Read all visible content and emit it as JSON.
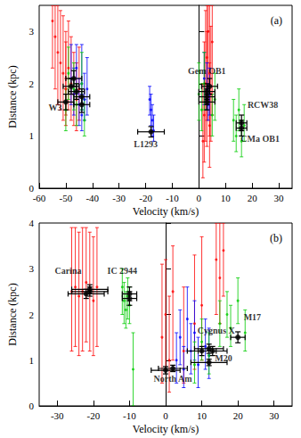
{
  "chart_data": [
    {
      "type": "scatter",
      "panel_label": "(a)",
      "xlabel": "Velocity (km/s)",
      "ylabel": "Distance (kpc)",
      "xlim": [
        -60,
        35
      ],
      "xticks": [
        -60,
        -50,
        -40,
        -30,
        -20,
        -10,
        0,
        10,
        20,
        30
      ],
      "ylim": [
        0,
        3.5
      ],
      "yticks": [
        0,
        1,
        2,
        3
      ],
      "grid": false,
      "series": [
        {
          "color": "#ff0000",
          "marker": "circle",
          "x": [
            -55,
            -54,
            -53,
            -52,
            -51,
            -50,
            -50,
            -49,
            -48,
            -47,
            -46,
            -45,
            1.5,
            2,
            2.5,
            3,
            3,
            3.5,
            4,
            4,
            4.5,
            5
          ],
          "y": [
            3.2,
            2.9,
            2.6,
            2.4,
            2.2,
            2.1,
            1.9,
            2.3,
            2.0,
            1.8,
            1.7,
            1.9,
            0.9,
            1.4,
            2.0,
            2.5,
            1.7,
            3.0,
            1.2,
            2.2,
            1.8,
            2.8
          ],
          "y_low": [
            2.3,
            1.9,
            1.6,
            1.5,
            1.3,
            1.4,
            1.2,
            1.5,
            1.3,
            1.2,
            1.1,
            1.3,
            0.2,
            0.5,
            0.9,
            1.3,
            0.8,
            1.6,
            0.4,
            1.0,
            0.9,
            1.4
          ],
          "y_high": [
            3.5,
            3.5,
            3.5,
            3.4,
            3.3,
            3.0,
            2.8,
            3.2,
            2.9,
            2.6,
            2.4,
            2.7,
            2.0,
            2.8,
            3.4,
            3.5,
            3.0,
            3.5,
            2.4,
            3.5,
            3.1,
            3.5
          ]
        },
        {
          "color": "#0000ff",
          "marker": "circle",
          "x": [
            -48,
            -47,
            -46,
            -45,
            -44,
            -44,
            -43,
            -42,
            -18.5,
            -18,
            -17.5,
            -17,
            2,
            3,
            3.5,
            4
          ],
          "y": [
            2.1,
            1.8,
            2.3,
            1.6,
            2.0,
            1.4,
            1.7,
            1.9,
            1.7,
            1.5,
            1.3,
            1.1,
            2.1,
            1.9,
            1.6,
            1.8
          ],
          "y_low": [
            1.6,
            1.4,
            1.8,
            1.2,
            1.5,
            1.1,
            1.3,
            1.4,
            1.4,
            1.2,
            1.0,
            0.9,
            1.6,
            1.5,
            1.3,
            1.4
          ],
          "y_high": [
            2.75,
            2.3,
            2.75,
            2.1,
            2.75,
            1.8,
            2.2,
            2.5,
            1.95,
            1.8,
            1.6,
            1.4,
            2.6,
            2.4,
            2.0,
            2.3
          ]
        },
        {
          "color": "#00cc00",
          "marker": "circle",
          "x": [
            -50,
            -49,
            -47,
            -46,
            -44,
            -43,
            0,
            1,
            2,
            5,
            6,
            13,
            14,
            15,
            16,
            17
          ],
          "y": [
            1.5,
            2.2,
            1.9,
            1.6,
            2.0,
            1.3,
            1.8,
            1.5,
            2.0,
            1.4,
            1.7,
            1.3,
            1.0,
            1.5,
            0.9,
            1.2
          ],
          "y_low": [
            1.1,
            1.7,
            1.5,
            1.2,
            1.5,
            1.0,
            1.3,
            1.1,
            1.5,
            1.0,
            1.3,
            0.9,
            0.7,
            1.1,
            0.6,
            0.9
          ],
          "y_high": [
            1.9,
            2.7,
            2.4,
            2.0,
            2.6,
            1.7,
            2.4,
            2.0,
            2.6,
            1.8,
            2.2,
            1.7,
            1.4,
            1.9,
            1.3,
            1.6
          ]
        },
        {
          "color": "#000000",
          "marker": "circle",
          "x": [
            -50,
            -48,
            -47,
            -46,
            -44,
            -44,
            -18,
            3,
            3,
            4,
            3,
            16,
            16
          ],
          "y": [
            1.65,
            1.95,
            2.1,
            1.85,
            1.75,
            1.6,
            1.08,
            1.75,
            1.65,
            1.95,
            1.85,
            1.25,
            1.15
          ],
          "x_low": [
            -53,
            -51,
            -50,
            -49,
            -47,
            -47,
            -23,
            0,
            0,
            1,
            0,
            14,
            14
          ],
          "x_high": [
            -47,
            -45,
            -44,
            -43,
            -41,
            -41,
            -13,
            6,
            6,
            7,
            6,
            18,
            18
          ],
          "y_low": [
            1.5,
            1.8,
            1.95,
            1.7,
            1.6,
            1.45,
            0.98,
            1.6,
            1.5,
            1.8,
            1.7,
            1.1,
            1.0
          ],
          "y_high": [
            1.8,
            2.1,
            2.25,
            2.0,
            1.9,
            1.75,
            1.18,
            1.9,
            1.8,
            2.1,
            2.0,
            1.4,
            1.3
          ]
        }
      ],
      "annotations": [
        {
          "text": "W3",
          "x": -54,
          "y": 1.55
        },
        {
          "text": "L1293",
          "x": -20,
          "y": 0.85
        },
        {
          "text": "Gem OB1",
          "x": 3,
          "y": 2.25
        },
        {
          "text": "RCW38",
          "x": 24,
          "y": 1.6
        },
        {
          "text": "CMa OB1",
          "x": 23,
          "y": 0.95
        }
      ]
    },
    {
      "type": "scatter",
      "panel_label": "(b)",
      "xlabel": "Velocity (km/s)",
      "ylabel": "Distance (kpc)",
      "xlim": [
        -35,
        35
      ],
      "xticks": [
        -30,
        -20,
        -10,
        0,
        10,
        20,
        30
      ],
      "ylim": [
        0,
        4
      ],
      "yticks": [
        0,
        1,
        2,
        3,
        4
      ],
      "grid": false,
      "series": [
        {
          "color": "#ff0000",
          "marker": "circle",
          "x": [
            -26,
            -25,
            -24,
            -23,
            -22,
            -21,
            -20,
            -19,
            -1,
            0,
            1,
            2,
            5,
            8,
            10,
            14,
            15,
            16
          ],
          "y": [
            2.5,
            2.6,
            2.4,
            2.5,
            2.7,
            2.5,
            2.3,
            2.6,
            1.5,
            2.0,
            1.0,
            2.5,
            1.2,
            1.8,
            2.2,
            3.2,
            2.8,
            3.4
          ],
          "y_low": [
            1.2,
            1.3,
            1.1,
            1.2,
            1.4,
            1.2,
            1.1,
            1.3,
            0.5,
            0.8,
            0.3,
            1.0,
            0.5,
            0.8,
            1.0,
            2.0,
            1.8,
            2.4
          ],
          "y_high": [
            3.9,
            3.9,
            3.8,
            3.9,
            3.9,
            3.8,
            3.7,
            3.9,
            3.1,
            3.2,
            2.4,
            3.5,
            2.6,
            3.3,
            3.7,
            4.0,
            4.0,
            4.0
          ]
        },
        {
          "color": "#0000ff",
          "marker": "circle",
          "x": [
            3,
            4,
            5,
            6,
            7,
            8,
            9,
            11,
            12
          ],
          "y": [
            1.0,
            1.5,
            0.8,
            1.9,
            1.2,
            1.6,
            0.9,
            1.3,
            1.1
          ],
          "y_low": [
            0.5,
            0.9,
            0.4,
            1.2,
            0.7,
            1.0,
            0.4,
            0.8,
            0.6
          ],
          "y_high": [
            1.6,
            2.1,
            1.3,
            2.6,
            1.8,
            2.3,
            1.5,
            1.9,
            1.7
          ]
        },
        {
          "color": "#00cc00",
          "marker": "circle",
          "x": [
            -12,
            -11.5,
            -11,
            -10.5,
            -10,
            -9,
            8,
            10,
            12,
            15,
            17,
            18,
            20,
            22
          ],
          "y": [
            2.6,
            2.3,
            2.1,
            2.4,
            2.2,
            0.8,
            0.9,
            1.4,
            1.1,
            1.8,
            2.0,
            1.7,
            2.3,
            1.6
          ],
          "y_low": [
            2.0,
            1.8,
            1.7,
            1.9,
            1.8,
            0.0,
            0.5,
            1.0,
            0.7,
            1.3,
            1.5,
            1.3,
            1.8,
            1.2
          ],
          "y_high": [
            3.0,
            2.7,
            2.5,
            2.8,
            2.6,
            1.6,
            1.4,
            1.9,
            1.6,
            2.3,
            2.5,
            2.2,
            2.8,
            2.1
          ]
        },
        {
          "color": "#000000",
          "marker": "circle",
          "x": [
            -22,
            -21,
            -21,
            -10,
            -10,
            10,
            12,
            13,
            20,
            12,
            2,
            0
          ],
          "y": [
            2.45,
            2.5,
            2.55,
            2.45,
            2.35,
            1.2,
            1.25,
            1.2,
            1.5,
            0.95,
            0.82,
            0.78
          ],
          "x_low": [
            -27,
            -26,
            -26,
            -12,
            -12,
            6,
            8,
            9,
            18,
            7,
            -2,
            -4
          ],
          "x_high": [
            -17,
            -16,
            -16,
            -8,
            -8,
            14,
            16,
            17,
            22,
            17,
            6,
            4
          ],
          "y_low": [
            2.35,
            2.4,
            2.45,
            2.3,
            2.2,
            1.1,
            1.15,
            1.1,
            1.38,
            0.88,
            0.75,
            0.7
          ],
          "y_high": [
            2.55,
            2.6,
            2.65,
            2.6,
            2.5,
            1.3,
            1.35,
            1.3,
            1.62,
            1.02,
            0.89,
            0.86
          ]
        }
      ],
      "annotations": [
        {
          "text": "Carina",
          "x": -27,
          "y": 2.95
        },
        {
          "text": "IC 2944",
          "x": -12,
          "y": 2.95
        },
        {
          "text": "M17",
          "x": 24,
          "y": 1.95
        },
        {
          "text": "Cygnus X",
          "x": 14,
          "y": 1.65
        },
        {
          "text": "M20",
          "x": 16,
          "y": 1.05
        },
        {
          "text": "North Am",
          "x": 2,
          "y": 0.6
        }
      ]
    }
  ]
}
